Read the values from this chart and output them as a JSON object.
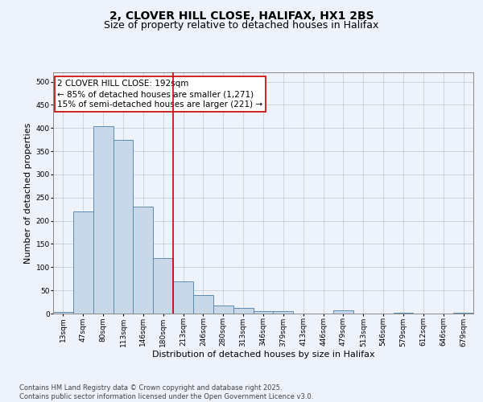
{
  "title_line1": "2, CLOVER HILL CLOSE, HALIFAX, HX1 2BS",
  "title_line2": "Size of property relative to detached houses in Halifax",
  "xlabel": "Distribution of detached houses by size in Halifax",
  "ylabel": "Number of detached properties",
  "categories": [
    "13sqm",
    "47sqm",
    "80sqm",
    "113sqm",
    "146sqm",
    "180sqm",
    "213sqm",
    "246sqm",
    "280sqm",
    "313sqm",
    "346sqm",
    "379sqm",
    "413sqm",
    "446sqm",
    "479sqm",
    "513sqm",
    "546sqm",
    "579sqm",
    "612sqm",
    "646sqm",
    "679sqm"
  ],
  "values": [
    3,
    220,
    403,
    375,
    230,
    120,
    70,
    40,
    17,
    13,
    6,
    5,
    0,
    0,
    7,
    0,
    0,
    1,
    0,
    0,
    2
  ],
  "bar_color": "#c8d8e8",
  "bar_edge_color": "#5b8db0",
  "vline_x": 5.5,
  "vline_color": "#cc0000",
  "annotation_line1": "2 CLOVER HILL CLOSE: 192sqm",
  "annotation_line2": "← 85% of detached houses are smaller (1,271)",
  "annotation_line3": "15% of semi-detached houses are larger (221) →",
  "annotation_box_color": "white",
  "annotation_box_edge": "#cc0000",
  "ylim": [
    0,
    520
  ],
  "yticks": [
    0,
    50,
    100,
    150,
    200,
    250,
    300,
    350,
    400,
    450,
    500
  ],
  "background_color": "#eef2fb",
  "footer_text": "Contains HM Land Registry data © Crown copyright and database right 2025.\nContains public sector information licensed under the Open Government Licence v3.0.",
  "title_fontsize": 10,
  "subtitle_fontsize": 9,
  "axis_label_fontsize": 8,
  "tick_fontsize": 6.5,
  "annotation_fontsize": 7.5,
  "footer_fontsize": 6.0
}
